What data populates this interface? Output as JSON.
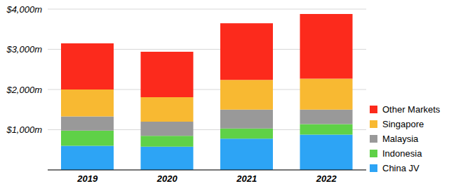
{
  "chart_data": {
    "type": "bar",
    "stacked": true,
    "categories": [
      "2019",
      "2020",
      "2021",
      "2022"
    ],
    "series": [
      {
        "name": "China JV",
        "color": "#2da4f5",
        "values": [
          600,
          580,
          780,
          880
        ]
      },
      {
        "name": "Indonesia",
        "color": "#5fd147",
        "values": [
          380,
          270,
          250,
          260
        ]
      },
      {
        "name": "Malaysia",
        "color": "#999999",
        "values": [
          350,
          350,
          470,
          360
        ]
      },
      {
        "name": "Singapore",
        "color": "#f8b932",
        "values": [
          670,
          610,
          740,
          770
        ]
      },
      {
        "name": "Other Markets",
        "color": "#fc2a1c",
        "values": [
          1150,
          1130,
          1410,
          1610
        ]
      }
    ],
    "ylim": [
      0,
      4000
    ],
    "yticks": [
      {
        "value": 1000,
        "label": "$1,000m"
      },
      {
        "value": 2000,
        "label": "$2,000m"
      },
      {
        "value": 3000,
        "label": "$3,000m"
      },
      {
        "value": 4000,
        "label": "$4,000m"
      }
    ],
    "grid": true,
    "legend": "right"
  }
}
